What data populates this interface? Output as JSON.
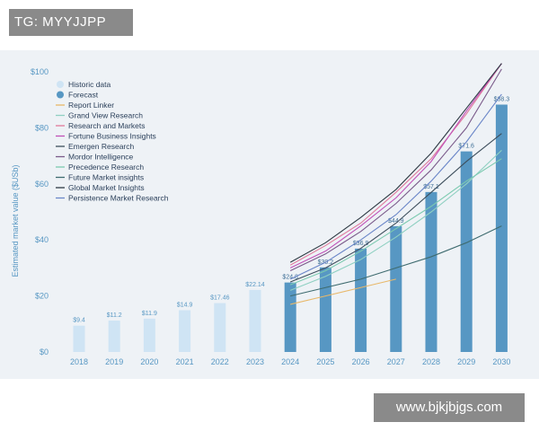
{
  "watermark_top": "TG: MYYJJPP",
  "watermark_bottom": "www.bjkjbjgs.com",
  "chart_data": {
    "type": "bar",
    "ylabel": "Estimated market value ($USb)",
    "ylim": [
      0,
      100
    ],
    "yticks": [
      {
        "value": 0,
        "label": "$0"
      },
      {
        "value": 20,
        "label": "$20"
      },
      {
        "value": 40,
        "label": "$40"
      },
      {
        "value": 60,
        "label": "$60"
      },
      {
        "value": 80,
        "label": "$80"
      },
      {
        "value": 100,
        "label": "$100"
      }
    ],
    "categories": [
      "2018",
      "2019",
      "2020",
      "2021",
      "2022",
      "2023",
      "2024",
      "2025",
      "2026",
      "2027",
      "2028",
      "2029",
      "2030"
    ],
    "bars": {
      "historic": {
        "name": "Historic data",
        "color": "#cfe4f4",
        "values": [
          9.4,
          11.2,
          11.9,
          14.9,
          17.46,
          22.14
        ],
        "labels": [
          "$9.4",
          "$11.2",
          "$11.9",
          "$14.9",
          "$17.46",
          "$22.14"
        ]
      },
      "forecast": {
        "name": "Forecast",
        "color": "#5797c3",
        "values": [
          24.8,
          30.2,
          36.9,
          44.9,
          57.1,
          71.6,
          88.3
        ],
        "labels": [
          "$24.8",
          "$30.2",
          "$36.9",
          "$44.9",
          "$57.1",
          "$71.6",
          "$88.3"
        ]
      }
    },
    "series": [
      {
        "name": "Report Linker",
        "color": "#e8b86a",
        "x": [
          2024,
          2025,
          2026,
          2027
        ],
        "values": [
          17,
          20,
          23,
          26
        ]
      },
      {
        "name": "Grand View Research",
        "color": "#8fd0c2",
        "x": [
          2024,
          2025,
          2026,
          2027,
          2028,
          2029,
          2030
        ],
        "values": [
          22,
          27,
          33,
          41,
          50,
          60,
          72
        ]
      },
      {
        "name": "Research and Markets",
        "color": "#e07a9c",
        "x": [
          2024,
          2025,
          2026,
          2027,
          2028,
          2029,
          2030
        ],
        "values": [
          31,
          38,
          46,
          57,
          69,
          85,
          105
        ]
      },
      {
        "name": "Fortune Business Insights",
        "color": "#c050b8",
        "x": [
          2024,
          2025,
          2026,
          2027,
          2028,
          2029,
          2030
        ],
        "values": [
          30,
          36,
          45,
          55,
          68,
          86,
          105
        ]
      },
      {
        "name": "Emergen Research",
        "color": "#3d4e5c",
        "x": [
          2024,
          2025,
          2026,
          2027,
          2028,
          2029,
          2030
        ],
        "values": [
          25,
          30,
          37,
          46,
          57,
          68,
          78
        ]
      },
      {
        "name": "Mordor Intelligence",
        "color": "#7a5a8a",
        "x": [
          2024,
          2025,
          2026,
          2027,
          2028,
          2029,
          2030
        ],
        "values": [
          29,
          35,
          43,
          53,
          65,
          80,
          101
        ]
      },
      {
        "name": "Precedence Research",
        "color": "#7ccab0",
        "x": [
          2024,
          2025,
          2026,
          2027,
          2028,
          2029,
          2030
        ],
        "values": [
          24,
          29,
          36,
          44,
          52,
          61,
          69
        ]
      },
      {
        "name": "Future Market insights",
        "color": "#3e6b6f",
        "x": [
          2024,
          2025,
          2026,
          2027,
          2028,
          2029,
          2030
        ],
        "values": [
          20,
          23,
          26,
          30,
          34,
          39,
          45
        ]
      },
      {
        "name": "Global Market Insights",
        "color": "#2e3a44",
        "x": [
          2024,
          2025,
          2026,
          2027,
          2028,
          2029,
          2030
        ],
        "values": [
          32,
          39,
          48,
          58,
          71,
          87,
          106
        ]
      },
      {
        "name": "Persistence Market Research",
        "color": "#6a86c8",
        "x": [
          2024,
          2025,
          2026,
          2027,
          2028,
          2029,
          2030
        ],
        "values": [
          26,
          32,
          40,
          49,
          61,
          75,
          92
        ]
      }
    ],
    "legend_position": "top-left",
    "grid": false
  }
}
